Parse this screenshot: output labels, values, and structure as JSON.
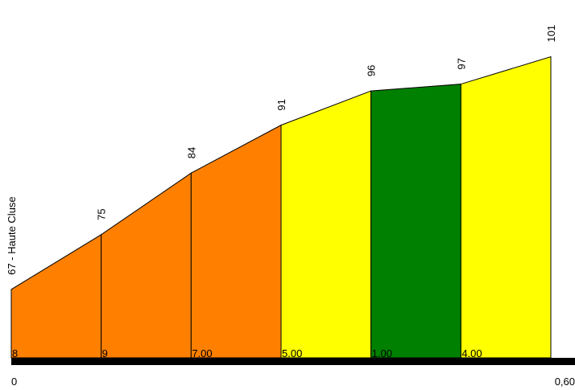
{
  "chart_data": {
    "type": "area",
    "title": "",
    "xlabel": "",
    "ylabel": "",
    "x_tick_labels": [
      "0",
      "0,60"
    ],
    "xlim": [
      0,
      0.6
    ],
    "ylim": [
      57,
      104
    ],
    "start_label": "67 - Haute Cluse",
    "points": [
      {
        "x": 0.0,
        "y": 67,
        "label": "67 - Haute Cluse"
      },
      {
        "x": 0.1,
        "y": 75,
        "label": "75"
      },
      {
        "x": 0.2,
        "y": 84,
        "label": "84"
      },
      {
        "x": 0.3,
        "y": 91,
        "label": "91"
      },
      {
        "x": 0.4,
        "y": 96,
        "label": "96"
      },
      {
        "x": 0.5,
        "y": 97,
        "label": "97"
      },
      {
        "x": 0.6,
        "y": 101,
        "label": "101"
      }
    ],
    "segments": [
      {
        "grade_label": "8",
        "color": "#FF8000"
      },
      {
        "grade_label": "9",
        "color": "#FF8000"
      },
      {
        "grade_label": "7.00",
        "color": "#FF8000"
      },
      {
        "grade_label": "5.00",
        "color": "#FFFF00"
      },
      {
        "grade_label": "1.00",
        "color": "#008000"
      },
      {
        "grade_label": "4.00",
        "color": "#FFFF00"
      }
    ]
  }
}
